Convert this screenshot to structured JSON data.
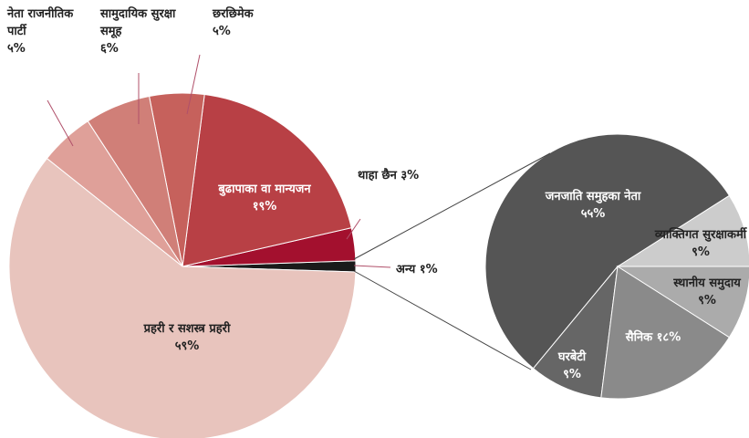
{
  "chart_data": [
    {
      "type": "pie",
      "categories": [
        "अन्य",
        "थाहा छैन",
        "बुढापाका वा मान्यजन",
        "छरछिमेक",
        "सामुदायिक सुरक्षा समूह",
        "नेता राजनीतिक पार्टी",
        "प्रहरी र सशस्त्र प्रहरी"
      ],
      "values": [
        1,
        3,
        19,
        5,
        6,
        5,
        59
      ],
      "value_labels": [
        "१%",
        "३%",
        "१९%",
        "५%",
        "६%",
        "५%",
        "५९%"
      ],
      "colors": [
        "#1a1a1a",
        "#a3102e",
        "#b84045",
        "#c6615c",
        "#d07f78",
        "#dfa099",
        "#e8c4bd"
      ]
    },
    {
      "type": "pie",
      "categories": [
        "व्याक्तिगत सुरक्षाकर्मी",
        "जनजाति समुहका नेता",
        "घरबेटी",
        "सैनिक",
        "स्थानीय समुदाय"
      ],
      "values": [
        9,
        55,
        9,
        18,
        9
      ],
      "value_labels": [
        "९%",
        "५५%",
        "९%",
        "१८%",
        "९%"
      ],
      "colors": [
        "#cccccc",
        "#555555",
        "#666666",
        "#8a8a8a",
        "#ababab"
      ]
    }
  ]
}
